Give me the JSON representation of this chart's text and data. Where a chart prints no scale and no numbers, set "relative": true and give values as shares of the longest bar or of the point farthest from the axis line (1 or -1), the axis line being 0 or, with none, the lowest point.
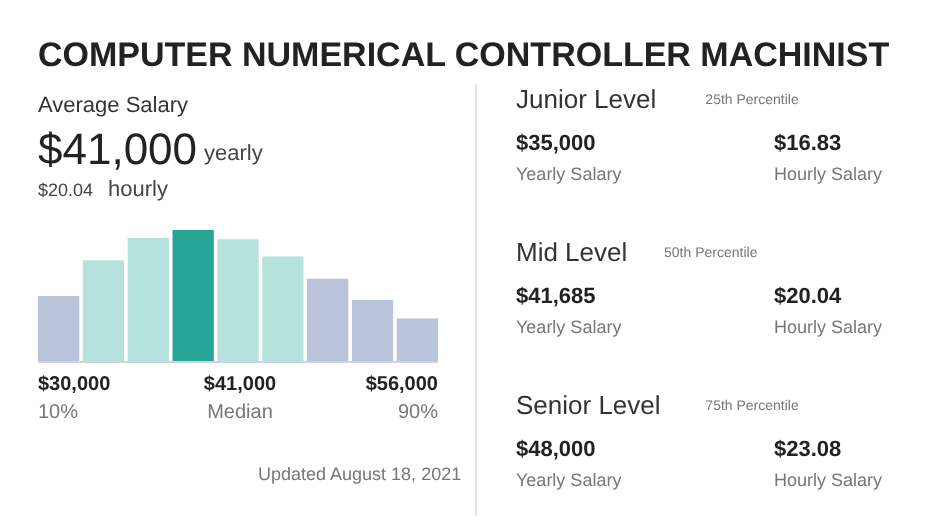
{
  "chart_data": [
    {
      "type": "bar",
      "title": "COMPUTER NUMERICAL CONTROLLER MACHINIST",
      "subtitle": "Average Salary",
      "relative": true,
      "categories": [
        null,
        null,
        null,
        null,
        null,
        null,
        null,
        null,
        null
      ],
      "values": [
        0.5,
        0.77,
        0.94,
        1,
        0.93,
        0.8,
        0.63,
        0.47,
        0.33
      ],
      "colors": [
        "#b9c3da",
        "#b5e2dd",
        "#b5e2dd",
        "#26a596",
        "#b5e2dd",
        "#b5e2dd",
        "#b9c3da",
        "#b9c3da",
        "#b9c3da"
      ],
      "annotations": [
        "$41,000",
        "yearly",
        "$20.04",
        "hourly",
        "$30,000",
        "10%",
        "$41,000",
        "Median",
        "$56,000",
        "90%",
        "Updated August 18, 2021"
      ]
    },
    {
      "type": "other",
      "annotations": [
        "Junior Level",
        "25th Percentile",
        "$35,000",
        "Yearly Salary",
        "$16.83",
        "Hourly Salary",
        "Mid Level",
        "50th Percentile",
        "$41,685",
        "Yearly Salary",
        "$20.04",
        "Hourly Salary",
        "Senior Level",
        "75th Percentile",
        "$48,000",
        "Yearly Salary",
        "$23.08",
        "Hourly Salary"
      ]
    }
  ]
}
